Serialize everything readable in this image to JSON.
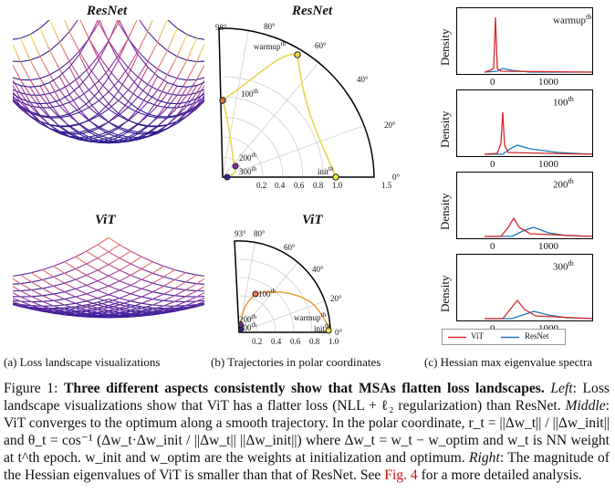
{
  "panel_a": {
    "title_top": "ResNet",
    "title_bottom": "ViT",
    "caption": "(a) Loss landscape visualizations"
  },
  "panel_b": {
    "title_top": "ResNet",
    "title_bottom": "ViT",
    "caption": "(b) Trajectories in polar coordinates",
    "top": {
      "angle_labels": [
        "98°",
        "80°",
        "60°",
        "40°",
        "20°",
        "0°"
      ],
      "radial_ticks": [
        "0.2",
        "0.4",
        "0.6",
        "0.8",
        "1.0",
        "1.5"
      ],
      "points": [
        "warmup",
        "100",
        "200",
        "300",
        "init"
      ],
      "point_sup": "th"
    },
    "bottom": {
      "angle_labels": [
        "93°",
        "80°",
        "60°",
        "40°",
        "20°",
        "0°"
      ],
      "radial_ticks": [
        "0.2",
        "0.4",
        "0.6",
        "0.8",
        "1.0"
      ],
      "points": [
        "warmup",
        "100",
        "200",
        "300",
        "init"
      ],
      "point_sup": "th"
    }
  },
  "panel_c": {
    "caption": "(c) Hessian max eigenvalue spectra",
    "ylabel": "Density",
    "xticks": [
      "0",
      "1000"
    ],
    "subplots": [
      {
        "label": "warmup",
        "sup": "th"
      },
      {
        "label": "100",
        "sup": "th"
      },
      {
        "label": "200",
        "sup": "th"
      },
      {
        "label": "300",
        "sup": "th"
      }
    ],
    "legend": [
      {
        "name": "ViT",
        "color": "#d62728"
      },
      {
        "name": "ResNet",
        "color": "#1f77b4"
      }
    ]
  },
  "caption": {
    "figure_label": "Figure 1:",
    "bold_text": "Three different aspects consistently show that MSAs flatten loss landscapes.",
    "left_label": "Left",
    "left_text": ": Loss landscape visualizations show that ViT has a flatter loss (NLL + ℓ₂ regularization) than ResNet.",
    "middle_label": "Middle",
    "middle_text": ": ViT converges to the optimum along a smooth trajectory. In the polar coordinate, r_t = ||Δw_t|| / ||Δw_init|| and θ_t = cos⁻¹ (Δw_t·Δw_init / ||Δw_t|| ||Δw_init||) where Δw_t = w_t − w_optim and w_t is NN weight at t^th epoch. w_init and w_optim are the weights at initialization and optimum.",
    "right_label": "Right",
    "right_text": ": The magnitude of the Hessian eigenvalues of ViT is smaller than that of ResNet. See",
    "ref_text": "Fig. 4",
    "end_text": "for a more detailed analysis."
  }
}
